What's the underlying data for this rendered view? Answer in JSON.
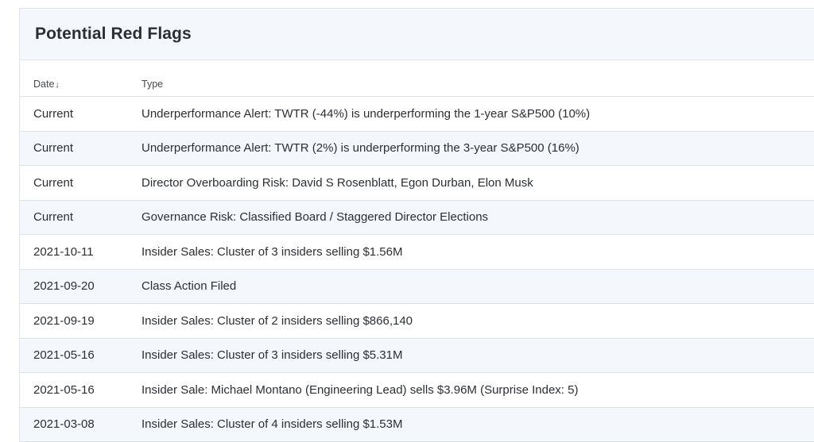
{
  "panel": {
    "title": "Potential Red Flags"
  },
  "table": {
    "columns": {
      "date": "Date",
      "type": "Type"
    },
    "sort_indicator": "↓",
    "rows": [
      {
        "date": "Current",
        "type": "Underperformance Alert: TWTR (-44%) is underperforming the 1-year S&P500 (10%)"
      },
      {
        "date": "Current",
        "type": "Underperformance Alert: TWTR (2%) is underperforming the 3-year S&P500 (16%)"
      },
      {
        "date": "Current",
        "type": "Director Overboarding Risk: David S Rosenblatt, Egon Durban, Elon Musk"
      },
      {
        "date": "Current",
        "type": "Governance Risk: Classified Board / Staggered Director Elections"
      },
      {
        "date": "2021-10-11",
        "type": "Insider Sales: Cluster of 3 insiders selling $1.56M"
      },
      {
        "date": "2021-09-20",
        "type": "Class Action Filed"
      },
      {
        "date": "2021-09-19",
        "type": "Insider Sales: Cluster of 2 insiders selling $866,140"
      },
      {
        "date": "2021-05-16",
        "type": "Insider Sales: Cluster of 3 insiders selling $5.31M"
      },
      {
        "date": "2021-05-16",
        "type": "Insider Sale: Michael Montano (Engineering Lead) sells $3.96M (Surprise Index: 5)"
      },
      {
        "date": "2021-03-08",
        "type": "Insider Sales: Cluster of 4 insiders selling $1.53M"
      }
    ]
  }
}
